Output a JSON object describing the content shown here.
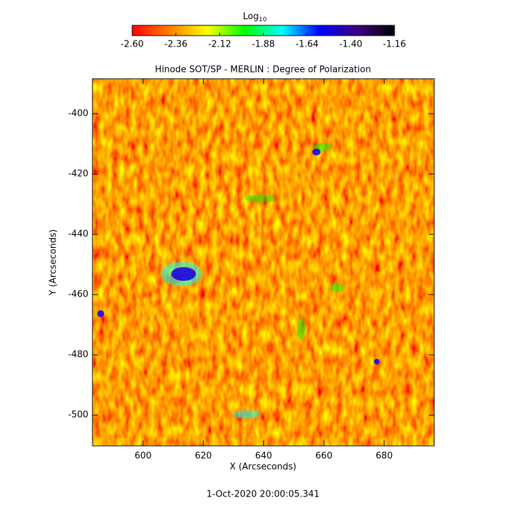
{
  "chart_data": {
    "type": "heatmap",
    "title": "Hinode SOT/SP - MERLIN : Degree of Polarization",
    "x_label": "X (Arcseconds)",
    "y_label": "Y (Arcseconds)",
    "xlim": [
      583.2,
      696.6
    ],
    "ylim": [
      -510.2,
      -388.4
    ],
    "xticks": [
      600,
      620,
      640,
      660,
      680
    ],
    "yticks": [
      -400,
      -420,
      -440,
      -460,
      -480,
      -500
    ],
    "colorbar_label": "Log",
    "colorbar_label_sub": "10",
    "colorbar_lim": [
      -2.6,
      -1.16
    ],
    "colorbar_ticks": [
      {
        "value": -2.6,
        "label": "-2.60"
      },
      {
        "value": -2.36,
        "label": "-2.36"
      },
      {
        "value": -2.12,
        "label": "-2.12"
      },
      {
        "value": -1.88,
        "label": "-1.88"
      },
      {
        "value": -1.64,
        "label": "-1.64"
      },
      {
        "value": -1.4,
        "label": "-1.40"
      },
      {
        "value": -1.16,
        "label": "-1.16"
      }
    ],
    "colormap": [
      "#ff0000",
      "#ff8000",
      "#ffff00",
      "#00ff00",
      "#00ffff",
      "#0000ff",
      "#400080",
      "#000000"
    ],
    "footer": "1-Oct-2020 20:00:05.341"
  }
}
